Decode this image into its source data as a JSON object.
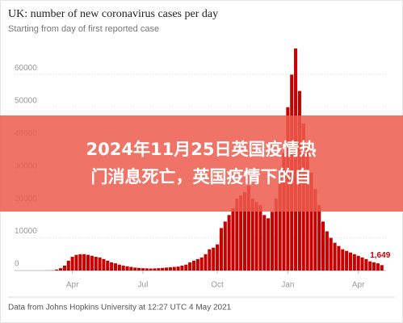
{
  "chart_data": {
    "type": "bar",
    "title": "UK: number of new coronavirus cases per day",
    "subtitle": "Starting from day of first reported case",
    "source": "Data from Johns Hopkins University at 12:27 UTC 4 May 2021",
    "color": "#c70000",
    "ylim": [
      0,
      70000
    ],
    "yticks": [
      0,
      10000,
      20000,
      30000,
      40000,
      50000,
      60000
    ],
    "grid": true,
    "categories": [
      null,
      null,
      null,
      null,
      null,
      null,
      null,
      null,
      null,
      null,
      null,
      null,
      "Apr",
      null,
      null,
      null,
      null,
      null,
      null,
      null,
      null,
      null,
      null,
      null,
      null,
      null,
      null,
      null,
      null,
      null,
      "Jul",
      null,
      null,
      null,
      null,
      null,
      null,
      null,
      null,
      null,
      null,
      null,
      null,
      null,
      null,
      null,
      null,
      null,
      null,
      "Oct",
      null,
      null,
      null,
      null,
      null,
      null,
      null,
      null,
      null,
      null,
      null,
      null,
      null,
      null,
      null,
      null,
      null,
      "Jan",
      null,
      null,
      null,
      null,
      null,
      null,
      null,
      null,
      null,
      null,
      null,
      null,
      null,
      null,
      null,
      null,
      null,
      "Apr",
      null,
      null,
      null,
      null,
      null,
      null
    ],
    "values": [
      0,
      0,
      0,
      0,
      0,
      0,
      10,
      50,
      300,
      700,
      1500,
      3000,
      4200,
      4800,
      5000,
      5000,
      4800,
      4500,
      4200,
      4000,
      3500,
      3000,
      2500,
      2200,
      1800,
      1500,
      1300,
      1100,
      900,
      800,
      700,
      650,
      600,
      650,
      700,
      800,
      900,
      1000,
      1100,
      1200,
      1500,
      1800,
      2500,
      3000,
      3500,
      4000,
      5000,
      6500,
      7000,
      8000,
      13000,
      15000,
      17000,
      19000,
      22000,
      23000,
      24000,
      26000,
      22000,
      21000,
      20000,
      17000,
      16000,
      18000,
      22000,
      30000,
      36000,
      50000,
      60000,
      68000,
      55000,
      45000,
      38000,
      30000,
      25000,
      20000,
      15000,
      12000,
      10000,
      8500,
      7500,
      6500,
      6000,
      5500,
      5000,
      4500,
      4000,
      3500,
      2800,
      2500,
      2200,
      1649
    ],
    "value_labels": [
      null,
      null,
      null,
      null,
      null,
      null,
      null,
      null,
      null,
      null,
      null,
      null,
      null,
      null,
      null,
      null,
      null,
      null,
      null,
      null,
      null,
      null,
      null,
      null,
      null,
      null,
      null,
      null,
      null,
      null,
      null,
      null,
      null,
      null,
      null,
      null,
      null,
      null,
      null,
      null,
      null,
      null,
      null,
      null,
      null,
      null,
      null,
      null,
      null,
      null,
      null,
      null,
      null,
      null,
      null,
      null,
      null,
      null,
      null,
      null,
      null,
      null,
      null,
      null,
      null,
      null,
      null,
      null,
      null,
      null,
      null,
      null,
      null,
      null,
      null,
      null,
      null,
      null,
      null,
      null,
      null,
      null,
      null,
      null,
      null,
      null,
      null,
      null,
      null,
      null,
      null,
      "1,649"
    ]
  },
  "overlay": {
    "lines": [
      "2024年11月25日英国疫情热",
      "门消息死亡，英国疫情下的自"
    ]
  }
}
